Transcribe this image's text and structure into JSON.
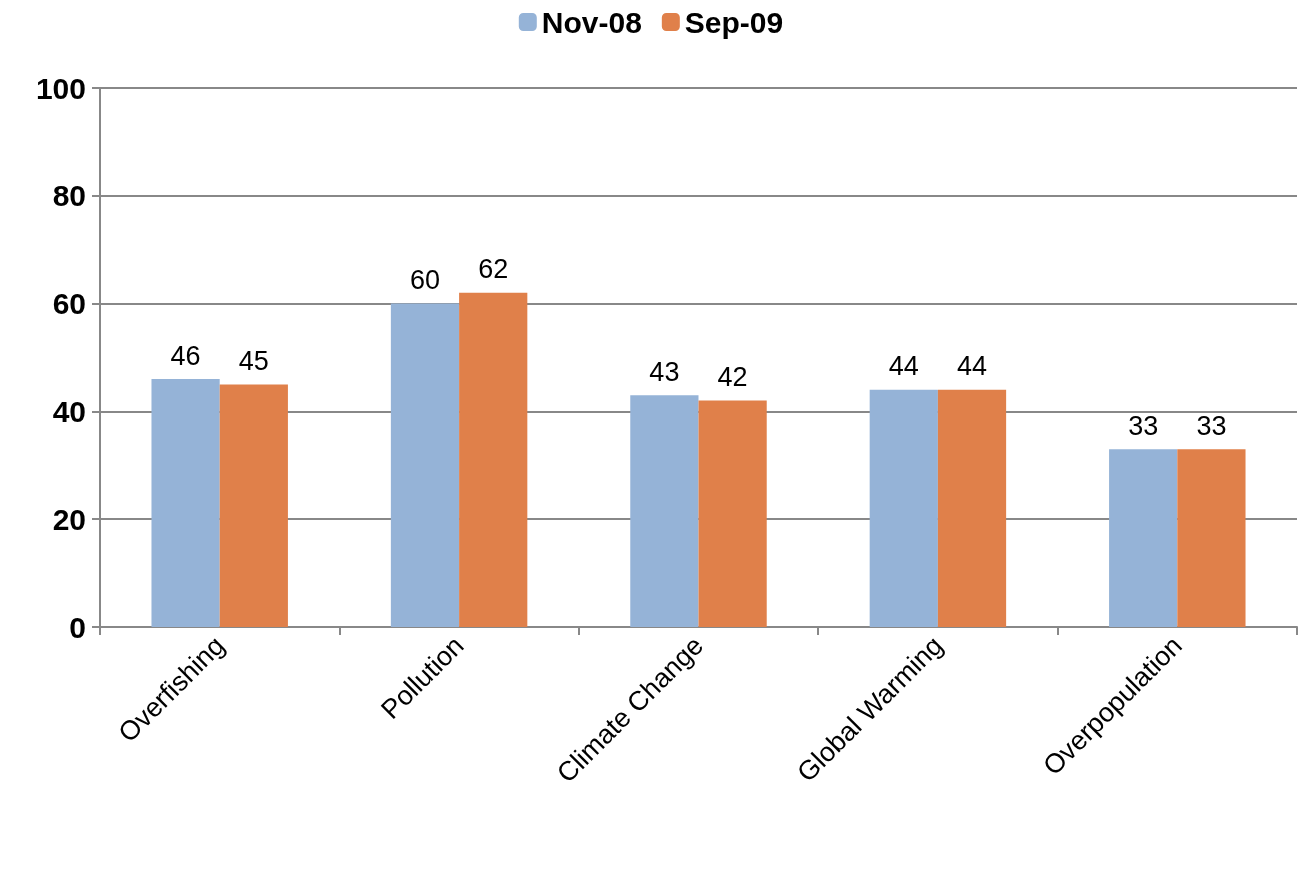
{
  "chart_data": {
    "type": "bar",
    "categories": [
      "Overfishing",
      "Pollution",
      "Climate Change",
      "Global Warming",
      "Overpopulation"
    ],
    "series": [
      {
        "name": "Nov-08",
        "color": "#95b3d7",
        "values": [
          46,
          60,
          43,
          44,
          33
        ]
      },
      {
        "name": "Sep-09",
        "color": "#e0804a",
        "values": [
          45,
          62,
          42,
          44,
          33
        ]
      }
    ],
    "ylim": [
      0,
      100
    ],
    "yticks": [
      0,
      20,
      40,
      60,
      80,
      100
    ],
    "grid": "y",
    "legend": "top",
    "data_labels": true
  }
}
